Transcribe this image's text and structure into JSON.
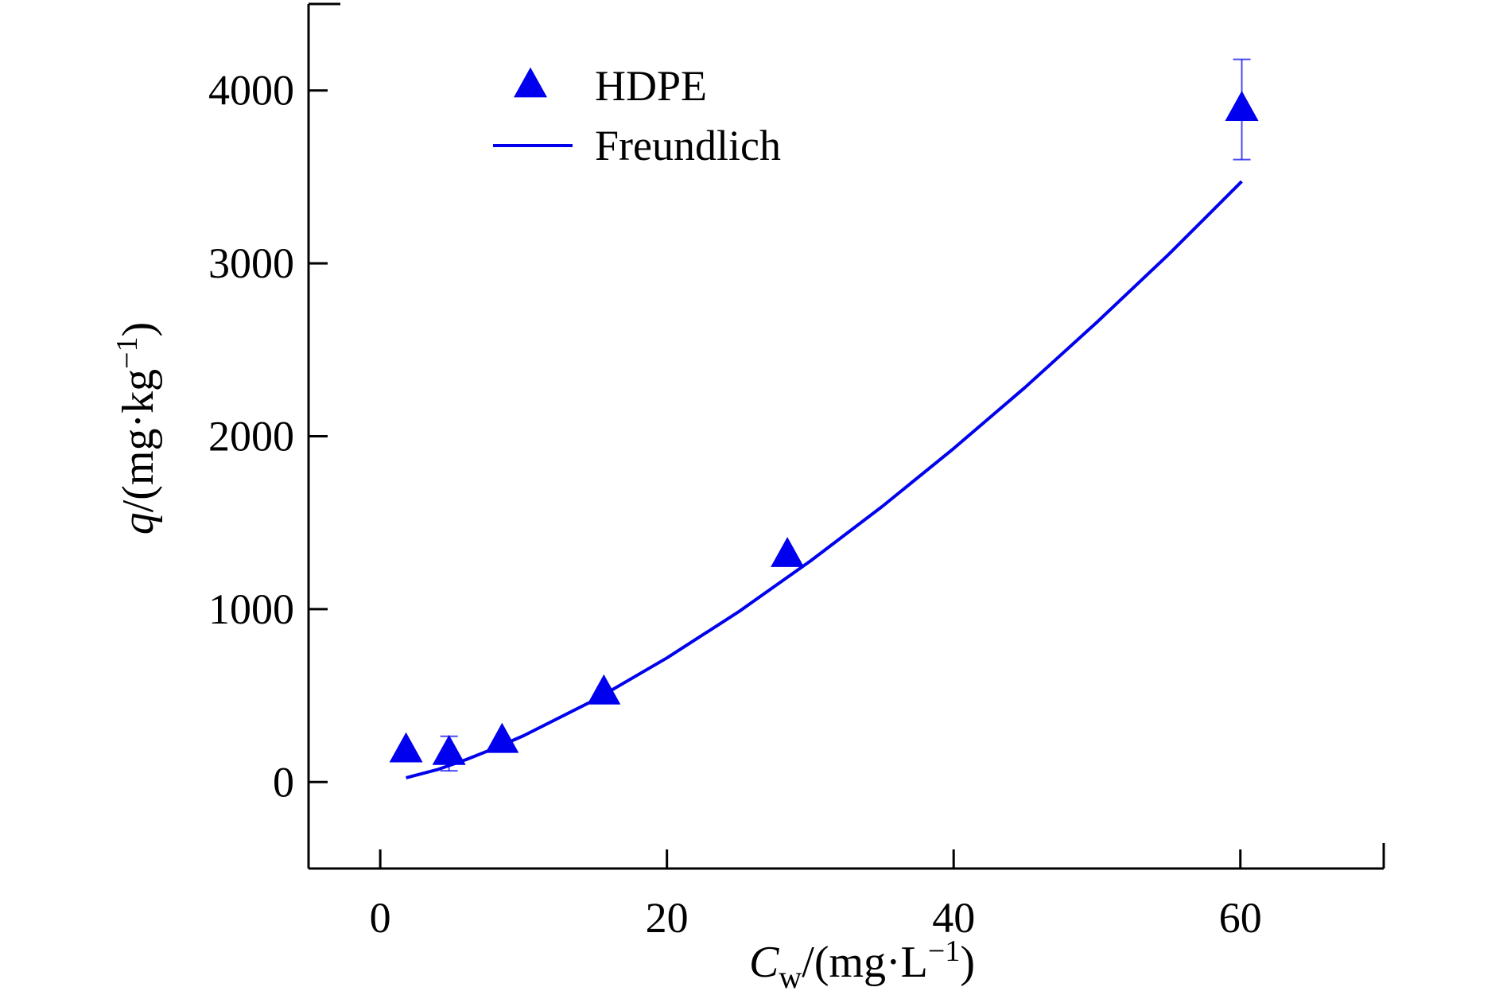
{
  "chart_data": {
    "type": "scatter",
    "title": "",
    "xlabel": {
      "main": "C",
      "sub": "w",
      "unit": "/(mg·L",
      "sup": "−1",
      "close": ")"
    },
    "ylabel": {
      "main": "q",
      "unit": "/(mg·kg",
      "sup": "−1",
      "close": ")"
    },
    "xlim": [
      -5,
      70
    ],
    "ylim": [
      -500,
      4500
    ],
    "xticks": [
      0,
      20,
      40,
      60
    ],
    "yticks": [
      0,
      1000,
      2000,
      3000,
      4000
    ],
    "grid": false,
    "legend_position": "top-center",
    "colors": {
      "series": "#0000ee",
      "axis": "#000000"
    },
    "series": [
      {
        "name": "HDPE",
        "kind": "scatter",
        "marker": "triangle",
        "points": [
          {
            "x": 1.8,
            "y": 180,
            "err": 0
          },
          {
            "x": 4.8,
            "y": 165,
            "err": 100
          },
          {
            "x": 8.5,
            "y": 235,
            "err": 0
          },
          {
            "x": 15.6,
            "y": 515,
            "err": 0
          },
          {
            "x": 28.4,
            "y": 1310,
            "err": 0
          },
          {
            "x": 60.1,
            "y": 3890,
            "err": 290
          }
        ]
      },
      {
        "name": "Freundlich",
        "kind": "line",
        "x": [
          1.8,
          4,
          6,
          8,
          10,
          15,
          20,
          25,
          30,
          35,
          40,
          45,
          50,
          55,
          60.1
        ],
        "y": [
          25,
          72,
          130,
          196,
          268,
          477,
          718,
          985,
          1278,
          1593,
          1929,
          2284,
          2660,
          3052,
          3474
        ]
      }
    ]
  }
}
